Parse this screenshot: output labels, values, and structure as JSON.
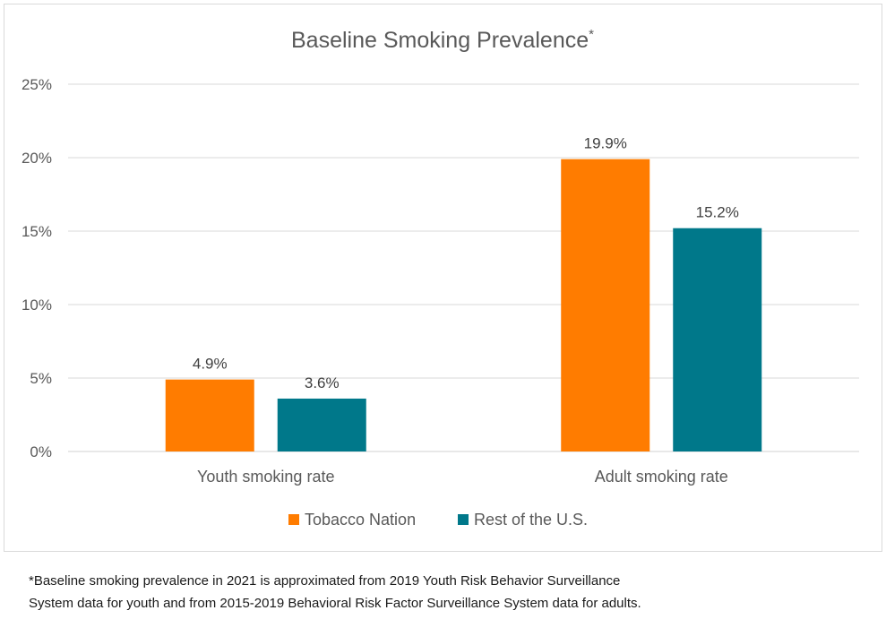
{
  "chart_data": {
    "type": "bar",
    "title": "Baseline Smoking Prevalence",
    "title_marker": "*",
    "categories": [
      "Youth smoking rate",
      "Adult smoking rate"
    ],
    "series": [
      {
        "name": "Tobacco Nation",
        "values": [
          4.9,
          19.9
        ],
        "labels": [
          "4.9%",
          "19.9%"
        ],
        "color": "#ff7c00"
      },
      {
        "name": "Rest of the U.S.",
        "values": [
          3.6,
          15.2
        ],
        "labels": [
          "3.6%",
          "15.2%"
        ],
        "color": "#00788a"
      }
    ],
    "yticks": [
      0,
      5,
      10,
      15,
      20,
      25
    ],
    "ytick_labels": [
      "0%",
      "5%",
      "10%",
      "15%",
      "20%",
      "25%"
    ],
    "ylim": [
      0,
      25
    ],
    "grid": true,
    "legend_position": "bottom"
  },
  "footnote": {
    "line1": "*Baseline smoking prevalence in 2021 is approximated from 2019 Youth Risk Behavior Surveillance",
    "line2": "System data for youth and from 2015-2019 Behavioral Risk Factor Surveillance System data for adults."
  }
}
